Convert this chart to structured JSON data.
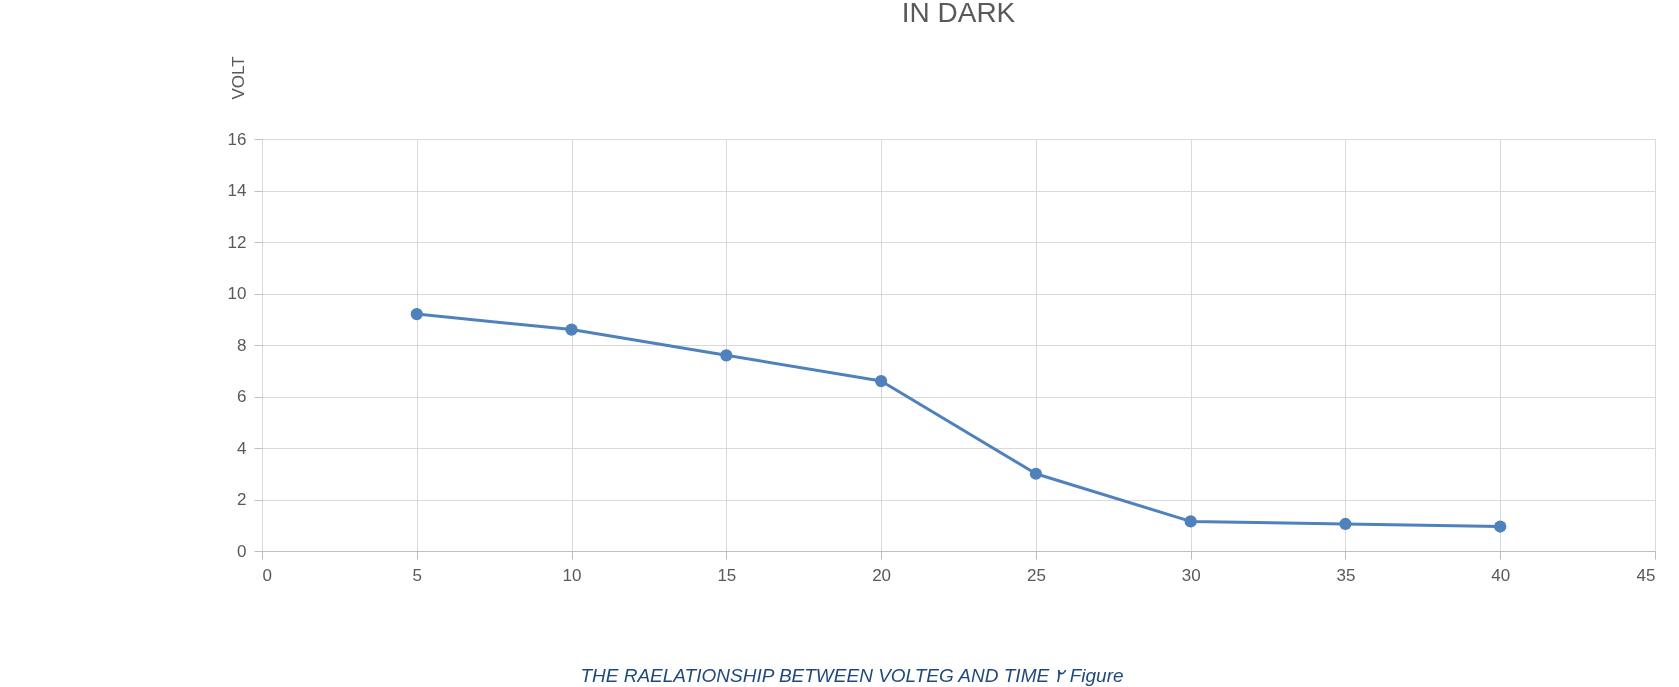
{
  "chart_data": {
    "type": "line",
    "title": "IN DARK",
    "ylabel": "VOLT",
    "x": [
      5,
      10,
      15,
      20,
      25,
      30,
      35,
      40
    ],
    "series": [
      {
        "color": "#4f81bd",
        "values": [
          9.2,
          8.6,
          7.6,
          6.6,
          3.0,
          1.15,
          1.05,
          0.95
        ]
      }
    ],
    "xlim": [
      0,
      45
    ],
    "xticks": [
      0,
      5,
      10,
      15,
      20,
      25,
      30,
      35,
      40,
      45
    ],
    "ylim": [
      0,
      16
    ],
    "yticks": [
      0,
      2,
      4,
      6,
      8,
      10,
      12,
      14,
      16
    ],
    "grid": true,
    "marker": "circle",
    "line_style": "solid",
    "legend": false,
    "annotations": [
      "THE RAELATIONSHIP BETWEEN VOLTEG AND TIME ٢ Figure"
    ]
  }
}
